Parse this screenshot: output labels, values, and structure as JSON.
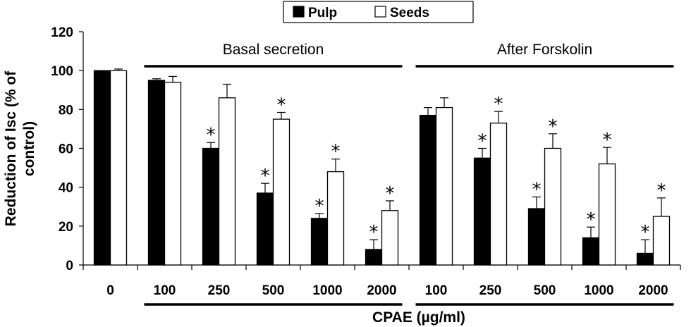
{
  "chart_data": {
    "type": "bar",
    "title": "",
    "xlabel": "CPAE (µg/ml)",
    "ylabel_lines": [
      "Reduction of  Isc (% of",
      "control)"
    ],
    "ylim": [
      0,
      120
    ],
    "yticks": [
      0,
      20,
      40,
      60,
      80,
      100,
      120
    ],
    "categories": [
      "0",
      "100",
      "250",
      "500",
      "1000",
      "2000",
      "100",
      "250",
      "500",
      "1000",
      "2000"
    ],
    "series": [
      {
        "name": "Pulp",
        "color": "#000000",
        "values": [
          100,
          95,
          60,
          37,
          24,
          8,
          77,
          55,
          29,
          14,
          6
        ],
        "errors": [
          0,
          0.8,
          3,
          5,
          2.5,
          5,
          4,
          5,
          6,
          5.5,
          7
        ],
        "significant": [
          false,
          false,
          true,
          true,
          true,
          true,
          false,
          true,
          true,
          true,
          true
        ]
      },
      {
        "name": "Seeds",
        "color": "#ffffff",
        "values": [
          100,
          94,
          86,
          75,
          48,
          28,
          81,
          73,
          60,
          52,
          25
        ],
        "errors": [
          0.8,
          3,
          7,
          3.5,
          6.5,
          5,
          5,
          6,
          7.5,
          8.5,
          9.5
        ],
        "significant": [
          false,
          false,
          false,
          true,
          true,
          true,
          false,
          true,
          true,
          true,
          true
        ]
      }
    ],
    "groups": [
      {
        "label": "Basal secretion",
        "from_category": 1,
        "to_category": 5
      },
      {
        "label": "After Forskolin",
        "from_category": 6,
        "to_category": 10
      }
    ],
    "significance_marker": "*",
    "legend": {
      "position": "top-center",
      "entries": [
        "Pulp",
        "Seeds"
      ]
    }
  }
}
